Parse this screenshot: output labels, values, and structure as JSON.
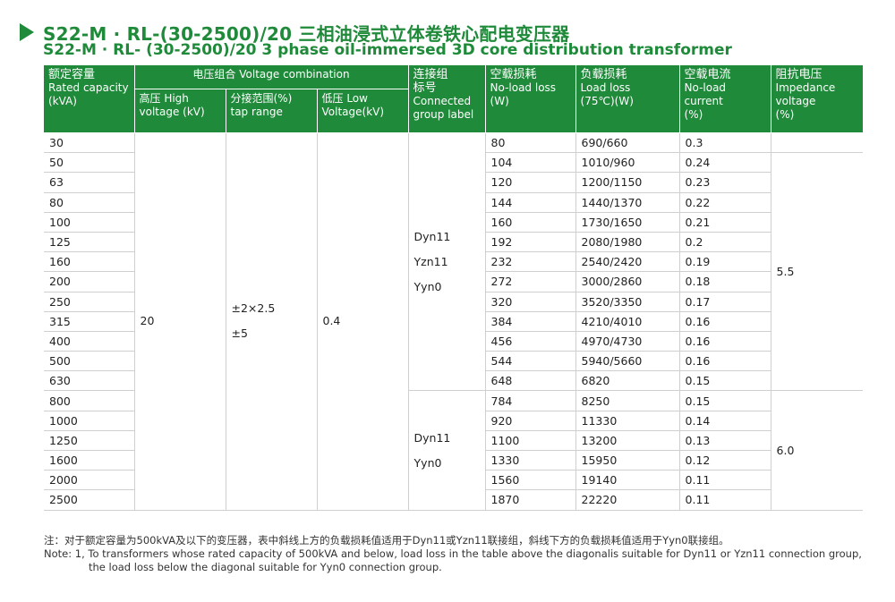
{
  "title": {
    "cn": "S22-M · RL-(30-2500)/20 三相油浸式立体卷铁心配电变压器",
    "en": "S22-M · RL- (30-2500)/20 3 phase oil-immersed 3D core distribution transformer"
  },
  "headers": {
    "rated_capacity": {
      "cn": "额定容量",
      "en": "Rated capacity",
      "unit": "(kVA)"
    },
    "voltage_combination": "电压组合 Voltage combination",
    "high_voltage": {
      "cn": "高压 High",
      "en": "voltage (kV)"
    },
    "tap_range": {
      "cn": "分接范围(%)",
      "en": "tap range"
    },
    "low_voltage": {
      "cn": "低压 Low",
      "en": "Voltage(kV)"
    },
    "connected_group": {
      "cn1": "连接组",
      "cn2": "标号",
      "en1": "Connected",
      "en2": "group label"
    },
    "no_load_loss": {
      "cn": "空载损耗",
      "en": "No-load loss",
      "unit": "(W)"
    },
    "load_loss": {
      "cn": "负载损耗",
      "en": "Load loss",
      "unit": "(75℃)(W)"
    },
    "no_load_current": {
      "cn": "空载电流",
      "en": "No-load current",
      "unit": "(%)"
    },
    "impedance": {
      "cn": "阻抗电压",
      "en1": "Impedance",
      "en2": "voltage",
      "unit": "(%)"
    }
  },
  "merged": {
    "high_voltage": "20",
    "tap_range_1": "±2×2.5",
    "tap_range_2": "±5",
    "low_voltage": "0.4",
    "group_a": [
      "Dyn11",
      "Yzn11",
      "Yyn0"
    ],
    "group_b": [
      "Dyn11",
      "Yyn0"
    ],
    "impedance_a": "5.5",
    "impedance_b": "6.0"
  },
  "rows": [
    {
      "capacity": "30",
      "no_load_loss": "80",
      "load_loss": "690/660",
      "no_load_current": "0.3"
    },
    {
      "capacity": "50",
      "no_load_loss": "104",
      "load_loss": "1010/960",
      "no_load_current": "0.24"
    },
    {
      "capacity": "63",
      "no_load_loss": "120",
      "load_loss": "1200/1150",
      "no_load_current": "0.23"
    },
    {
      "capacity": "80",
      "no_load_loss": "144",
      "load_loss": "1440/1370",
      "no_load_current": "0.22"
    },
    {
      "capacity": "100",
      "no_load_loss": "160",
      "load_loss": "1730/1650",
      "no_load_current": "0.21"
    },
    {
      "capacity": "125",
      "no_load_loss": "192",
      "load_loss": "2080/1980",
      "no_load_current": "0.2"
    },
    {
      "capacity": "160",
      "no_load_loss": "232",
      "load_loss": "2540/2420",
      "no_load_current": "0.19"
    },
    {
      "capacity": "200",
      "no_load_loss": "272",
      "load_loss": "3000/2860",
      "no_load_current": "0.18"
    },
    {
      "capacity": "250",
      "no_load_loss": "320",
      "load_loss": "3520/3350",
      "no_load_current": "0.17"
    },
    {
      "capacity": "315",
      "no_load_loss": "384",
      "load_loss": "4210/4010",
      "no_load_current": "0.16"
    },
    {
      "capacity": "400",
      "no_load_loss": "456",
      "load_loss": "4970/4730",
      "no_load_current": "0.16"
    },
    {
      "capacity": "500",
      "no_load_loss": "544",
      "load_loss": "5940/5660",
      "no_load_current": "0.16"
    },
    {
      "capacity": "630",
      "no_load_loss": "648",
      "load_loss": "6820",
      "no_load_current": "0.15"
    },
    {
      "capacity": "800",
      "no_load_loss": "784",
      "load_loss": "8250",
      "no_load_current": "0.15"
    },
    {
      "capacity": "1000",
      "no_load_loss": "920",
      "load_loss": "11330",
      "no_load_current": "0.14"
    },
    {
      "capacity": "1250",
      "no_load_loss": "1100",
      "load_loss": "13200",
      "no_load_current": "0.13"
    },
    {
      "capacity": "1600",
      "no_load_loss": "1330",
      "load_loss": "15950",
      "no_load_current": "0.12"
    },
    {
      "capacity": "2000",
      "no_load_loss": "1560",
      "load_loss": "19140",
      "no_load_current": "0.11"
    },
    {
      "capacity": "2500",
      "no_load_loss": "1870",
      "load_loss": "22220",
      "no_load_current": "0.11"
    }
  ],
  "note": {
    "cn": "注：对于额定容量为500kVA及以下的变压器，表中斜线上方的负载损耗值适用于Dyn11或Yzn11联接组，斜线下方的负载损耗值适用于Yyn0联接组。",
    "en1": "Note: 1, To transformers whose rated capacity of 500kVA and below, load loss in the table above the diagonalis suitable for Dyn11 or Yzn11 connection group,",
    "en2": "the load loss below the diagonal suitable for Yyn0 connection group."
  },
  "colors": {
    "accent": "#1f8a3a"
  }
}
